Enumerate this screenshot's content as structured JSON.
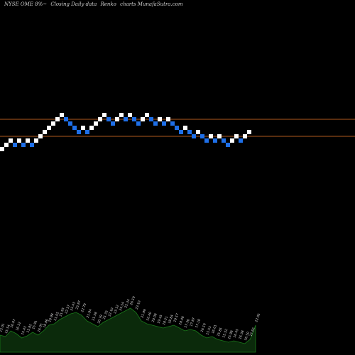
{
  "header": {
    "ticker": "NYSE OME 8%~",
    "desc": "Closing Daily data",
    "type": "Renko",
    "source": "charts MunafaSutra.com"
  },
  "colors": {
    "background": "#000000",
    "up_brick": "#ffffff",
    "down_brick": "#1e6fe8",
    "reference_line": "#b05a1e",
    "volume_fill": "#0b2a0b",
    "volume_edge": "#1a7a1a",
    "volume_label": "#d8d8d8"
  },
  "chart_data": {
    "type": "renko",
    "brick_size": 1,
    "reference_levels": [
      28,
      32
    ],
    "bricks": [
      {
        "level": 27,
        "dir": "up"
      },
      {
        "level": 28,
        "dir": "up"
      },
      {
        "level": 29,
        "dir": "up"
      },
      {
        "level": 28,
        "dir": "down"
      },
      {
        "level": 29,
        "dir": "up"
      },
      {
        "level": 28,
        "dir": "down"
      },
      {
        "level": 29,
        "dir": "up"
      },
      {
        "level": 28,
        "dir": "down"
      },
      {
        "level": 29,
        "dir": "up"
      },
      {
        "level": 30,
        "dir": "up"
      },
      {
        "level": 31,
        "dir": "up"
      },
      {
        "level": 32,
        "dir": "up"
      },
      {
        "level": 33,
        "dir": "up"
      },
      {
        "level": 34,
        "dir": "up"
      },
      {
        "level": 35,
        "dir": "up"
      },
      {
        "level": 34,
        "dir": "down"
      },
      {
        "level": 33,
        "dir": "down"
      },
      {
        "level": 32,
        "dir": "down"
      },
      {
        "level": 31,
        "dir": "down"
      },
      {
        "level": 32,
        "dir": "up"
      },
      {
        "level": 31,
        "dir": "down"
      },
      {
        "level": 32,
        "dir": "up"
      },
      {
        "level": 33,
        "dir": "up"
      },
      {
        "level": 34,
        "dir": "up"
      },
      {
        "level": 35,
        "dir": "up"
      },
      {
        "level": 34,
        "dir": "down"
      },
      {
        "level": 33,
        "dir": "down"
      },
      {
        "level": 34,
        "dir": "up"
      },
      {
        "level": 35,
        "dir": "up"
      },
      {
        "level": 34,
        "dir": "down"
      },
      {
        "level": 35,
        "dir": "up"
      },
      {
        "level": 34,
        "dir": "down"
      },
      {
        "level": 33,
        "dir": "down"
      },
      {
        "level": 34,
        "dir": "up"
      },
      {
        "level": 35,
        "dir": "up"
      },
      {
        "level": 34,
        "dir": "down"
      },
      {
        "level": 33,
        "dir": "down"
      },
      {
        "level": 34,
        "dir": "up"
      },
      {
        "level": 33,
        "dir": "down"
      },
      {
        "level": 34,
        "dir": "up"
      },
      {
        "level": 33,
        "dir": "down"
      },
      {
        "level": 32,
        "dir": "down"
      },
      {
        "level": 31,
        "dir": "down"
      },
      {
        "level": 32,
        "dir": "up"
      },
      {
        "level": 31,
        "dir": "down"
      },
      {
        "level": 30,
        "dir": "down"
      },
      {
        "level": 31,
        "dir": "up"
      },
      {
        "level": 30,
        "dir": "down"
      },
      {
        "level": 29,
        "dir": "down"
      },
      {
        "level": 30,
        "dir": "up"
      },
      {
        "level": 29,
        "dir": "down"
      },
      {
        "level": 30,
        "dir": "up"
      },
      {
        "level": 29,
        "dir": "down"
      },
      {
        "level": 28,
        "dir": "down"
      },
      {
        "level": 29,
        "dir": "up"
      },
      {
        "level": 30,
        "dir": "up"
      },
      {
        "level": 29,
        "dir": "down"
      },
      {
        "level": 30,
        "dir": "up"
      },
      {
        "level": 31,
        "dir": "up"
      }
    ],
    "volume_labels": [
      "15.01",
      "15.54",
      "16.07",
      "16.32",
      "15.43",
      "15.82",
      "15.91",
      "16.05",
      "18.86",
      "19.98",
      "21.05",
      "21.93",
      "22.57",
      "23.43",
      "23.87",
      "22.79",
      "21.94",
      "21.58",
      "20.79",
      "21.33",
      "22.10",
      "23.12",
      "24.54",
      "25.34",
      "26.19",
      "23.10",
      "21.99",
      "22.40",
      "20.08",
      "19.45",
      "18.21",
      "18.84",
      "19.17",
      "18.48",
      "17.36",
      "17.87",
      "17.18",
      "16.10",
      "15.53",
      "16.01",
      "15.85",
      "15.52",
      "15.98",
      "16.45",
      "16.38",
      "16.50",
      "17.62",
      "22.05"
    ],
    "volume": [
      24,
      22,
      30,
      26,
      20,
      23,
      28,
      24,
      30,
      38,
      40,
      46,
      50,
      54,
      56,
      52,
      44,
      40,
      36,
      42,
      46,
      50,
      54,
      58,
      62,
      56,
      44,
      40,
      38,
      36,
      34,
      36,
      38,
      34,
      30,
      32,
      30,
      24,
      20,
      22,
      18,
      16,
      14,
      16,
      14,
      12,
      18,
      38
    ]
  }
}
